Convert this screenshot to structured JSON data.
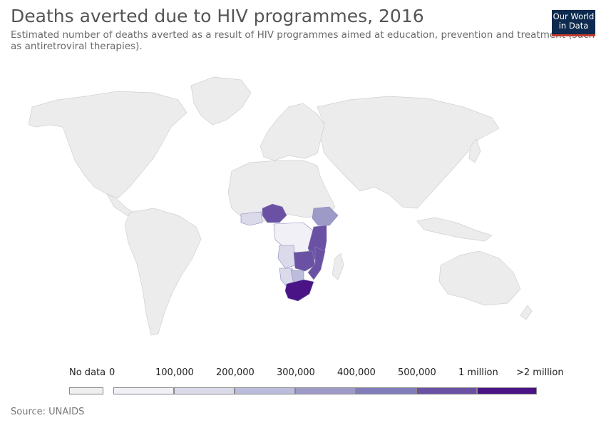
{
  "title": "Deaths averted due to HIV programmes, 2016",
  "subtitle": "Estimated number of deaths averted as a result of HIV programmes aimed at education, prevention and treatment (such as antiretroviral therapies).",
  "logo": {
    "line1": "Our World",
    "line2": "in Data"
  },
  "source": "Source: UNAIDS",
  "colors": {
    "no_data": "#eeeeee",
    "bins": [
      "#f2f0f7",
      "#dadaeb",
      "#bcbddc",
      "#9e9ac8",
      "#807dba",
      "#6a51a3",
      "#4a1486"
    ]
  },
  "legend": {
    "no_data_label": "No data",
    "labels": [
      "0",
      "100,000",
      "200,000",
      "300,000",
      "400,000",
      "500,000",
      "1 million",
      ">2 million"
    ]
  }
}
